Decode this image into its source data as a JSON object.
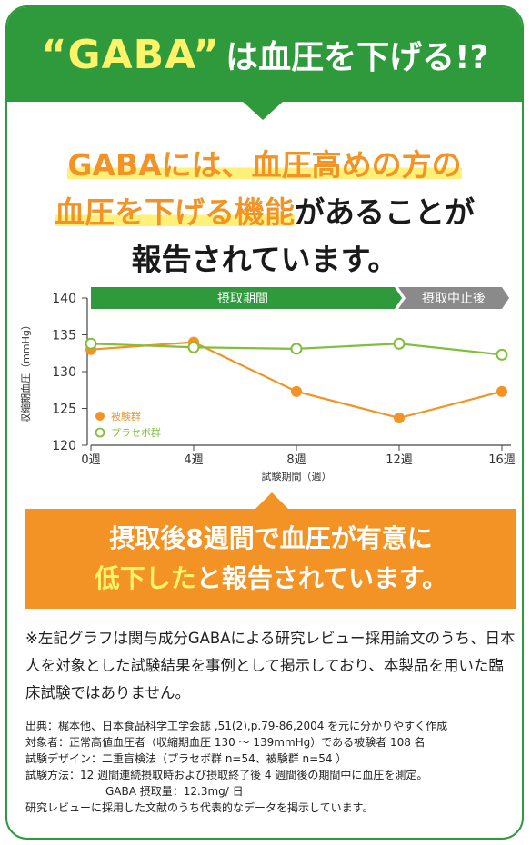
{
  "header": {
    "title_quoted": "“GABA”",
    "title_rest": "は血圧を下げる!?"
  },
  "headline": {
    "line1": "GABAには、血圧高めの方の",
    "line2_orange": "血圧を下げる機能",
    "line2_black": "があることが",
    "line3": "報告されています。"
  },
  "chart_data": {
    "type": "line",
    "ylabel": "収縮期血圧（mmHg）",
    "xlabel": "試験期間（週）",
    "ylim": [
      120,
      140
    ],
    "yticks": [
      "120",
      "125",
      "130",
      "135",
      "140"
    ],
    "x": [
      "0週",
      "4週",
      "8週",
      "12週",
      "16週"
    ],
    "phases": {
      "intake": "摂取期間",
      "stopped": "摂取中止後"
    },
    "series": [
      {
        "name": "被験群",
        "color": "#f39325",
        "values": [
          133.0,
          134.0,
          127.3,
          123.7,
          127.3
        ]
      },
      {
        "name": "プラセボ群",
        "color": "#7fbf3a",
        "values": [
          133.8,
          133.3,
          133.1,
          133.8,
          132.3
        ]
      }
    ],
    "legend": "bottom-left",
    "grid": false
  },
  "callout": {
    "line1": "摂取後8週間で血圧が有意に",
    "line2_yellow": "低下した",
    "line2_white": "と報告されています。"
  },
  "note": "※左記グラフは関与成分GABAによる研究レビュー採用論文のうち、日本人を対象とした試験結果を事例として掲示しており、本製品を用いた臨床試験ではありません。",
  "source": {
    "line1": "出典：梶本他、日本食品科学工学会誌 ,51(2),p.79-86,2004 を元に分かりやすく作成",
    "line2": "対象者：正常高値血圧者（収縮期血圧 130 〜 139mmHg）である被験者 108 名",
    "line3": "試験デザイン：二重盲検法（プラセボ群 n=54、被験群 n=54 ）",
    "line4": "試験方法：12 週間連続摂取時および摂取終了後 4 週間後の期間中に血圧を測定。",
    "line5": "GABA 摂取量：12.3mg/ 日",
    "line6": "研究レビューに採用した文献のうち代表的なデータを掲示しています。"
  }
}
